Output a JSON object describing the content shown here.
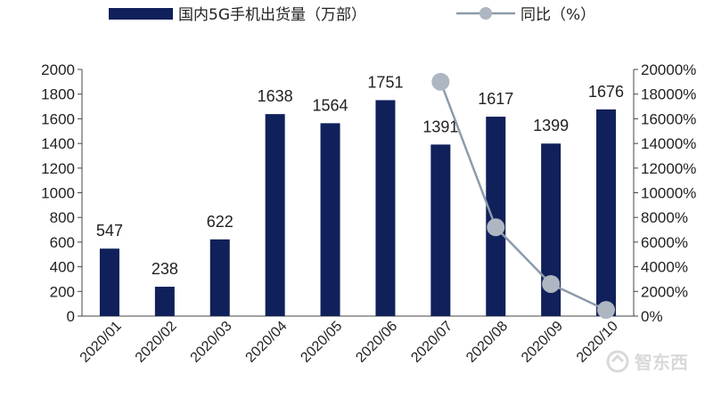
{
  "colors": {
    "bar": "#10205a",
    "line": "#8c9bac",
    "marker": "#aeb6c1",
    "axis": "#444444"
  },
  "legend": {
    "bar_label": "国内5G手机出货量（万部）",
    "line_label": "同比（%）"
  },
  "watermark": {
    "text": "智东西",
    "icon": "watermark-logo-icon"
  },
  "chart_data": {
    "type": "bar",
    "categories": [
      "2020/01",
      "2020/02",
      "2020/03",
      "2020/04",
      "2020/05",
      "2020/06",
      "2020/07",
      "2020/08",
      "2020/09",
      "2020/10"
    ],
    "series": [
      {
        "name": "国内5G手机出货量（万部）",
        "type": "bar",
        "axis": "left",
        "values": [
          547,
          238,
          622,
          1638,
          1564,
          1751,
          1391,
          1617,
          1399,
          1676
        ],
        "data_labels": [
          "547",
          "238",
          "622",
          "1638",
          "1564",
          "1751",
          "1391",
          "1617",
          "1399",
          "1676"
        ]
      },
      {
        "name": "同比（%）",
        "type": "line",
        "axis": "right",
        "x": [
          "2020/07",
          "2020/08",
          "2020/09",
          "2020/10"
        ],
        "values": [
          19000,
          7200,
          2600,
          500
        ]
      }
    ],
    "left_axis": {
      "ylim": [
        0,
        2000
      ],
      "ticks": [
        "0",
        "200",
        "400",
        "600",
        "800",
        "1000",
        "1200",
        "1400",
        "1600",
        "1800",
        "2000"
      ]
    },
    "right_axis": {
      "ylim": [
        0,
        20000
      ],
      "ticks": [
        "0%",
        "2000%",
        "4000%",
        "6000%",
        "8000%",
        "10000%",
        "12000%",
        "14000%",
        "16000%",
        "18000%",
        "20000%"
      ]
    },
    "legend_position": "top",
    "grid": false
  }
}
